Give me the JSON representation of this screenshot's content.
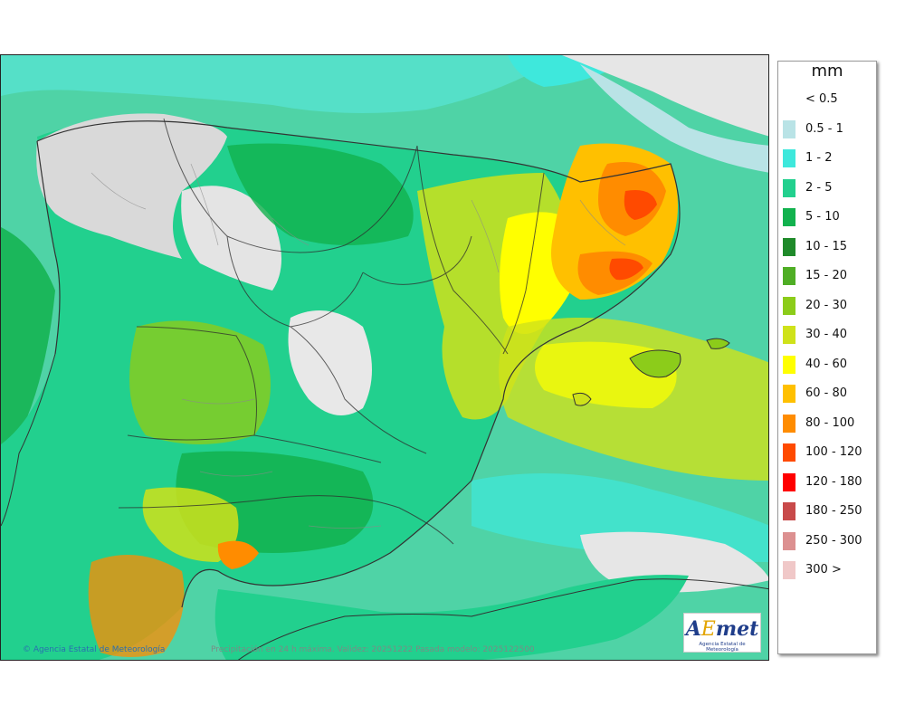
{
  "legend": {
    "unit": "mm",
    "classes": [
      {
        "label": "< 0.5",
        "color": "#ffffff"
      },
      {
        "label": "0.5 - 1",
        "color": "#b9e3e6"
      },
      {
        "label": "1 - 2",
        "color": "#3ee8dc"
      },
      {
        "label": "2 - 5",
        "color": "#22d08e"
      },
      {
        "label": "5 - 10",
        "color": "#12b24e"
      },
      {
        "label": "10 - 15",
        "color": "#1f8a2a"
      },
      {
        "label": "15 - 20",
        "color": "#4fae25"
      },
      {
        "label": "20 - 30",
        "color": "#8ccc1a"
      },
      {
        "label": "30 - 40",
        "color": "#cfe21a"
      },
      {
        "label": "40 - 60",
        "color": "#ffff00"
      },
      {
        "label": "60 - 80",
        "color": "#ffc000"
      },
      {
        "label": "80 - 100",
        "color": "#ff8c00"
      },
      {
        "label": "100 - 120",
        "color": "#ff4a00"
      },
      {
        "label": "120 - 180",
        "color": "#ff0000"
      },
      {
        "label": "180 - 250",
        "color": "#c84a4a"
      },
      {
        "label": "250 - 300",
        "color": "#dc9090"
      },
      {
        "label": "300 >",
        "color": "#f0c8c8"
      }
    ]
  },
  "footer": {
    "credit": "© Agencia Estatal de Meteorología",
    "caption": "Precipitación en 24 h máxima. Validez: 20251222 Pasada modelo: 2025122500"
  },
  "logo": {
    "mark_a": "A",
    "mark_e": "E",
    "mark_rest": "met",
    "subtitle": "Agencia Estatal de Meteorología"
  }
}
